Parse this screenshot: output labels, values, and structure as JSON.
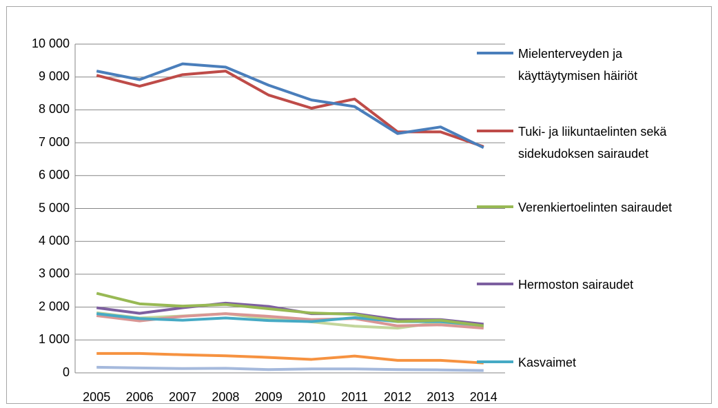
{
  "chart_data": {
    "type": "line",
    "categories": [
      "2005",
      "2006",
      "2007",
      "2008",
      "2009",
      "2010",
      "2011",
      "2012",
      "2013",
      "2014"
    ],
    "series": [
      {
        "name": "Mielenterveyden ja käyttäytymisen häiriöt",
        "color": "#4a7ebb",
        "values": [
          9180,
          8920,
          9400,
          9300,
          8750,
          8300,
          8100,
          7280,
          7480,
          6850
        ]
      },
      {
        "name": "Tuki- ja liikuntaelinten sekä sidekudoksen sairaudet",
        "color": "#be4b48",
        "values": [
          9050,
          8720,
          9070,
          9180,
          8450,
          8050,
          8330,
          7330,
          7330,
          6880
        ]
      },
      {
        "name": "Verenkiertoelinten sairaudet",
        "color": "#98b954",
        "values": [
          2420,
          2100,
          2030,
          2080,
          1950,
          1820,
          1780,
          1560,
          1600,
          1430
        ]
      },
      {
        "name": "Hermoston sairaudet",
        "color": "#7d5fa0",
        "values": [
          1980,
          1810,
          1980,
          2120,
          2020,
          1800,
          1800,
          1620,
          1620,
          1480
        ]
      },
      {
        "name": "Kasvaimet",
        "color": "#46aac5",
        "values": [
          1800,
          1650,
          1600,
          1670,
          1590,
          1560,
          1680,
          1560,
          1560,
          1440
        ]
      },
      {
        "color": "#f69240",
        "values": [
          590,
          590,
          550,
          520,
          470,
          410,
          510,
          380,
          380,
          300
        ]
      },
      {
        "color": "#a5b9dc",
        "values": [
          170,
          150,
          130,
          140,
          100,
          120,
          120,
          100,
          90,
          70
        ]
      },
      {
        "color": "#d99694",
        "values": [
          1740,
          1580,
          1720,
          1800,
          1720,
          1620,
          1650,
          1430,
          1460,
          1360
        ]
      },
      {
        "color": "#c3d69b",
        "values": [
          1830,
          1670,
          1730,
          1800,
          1650,
          1550,
          1420,
          1360,
          1540,
          1380
        ]
      }
    ],
    "ylim": [
      0,
      10000
    ],
    "yticks": [
      0,
      {
        "value": 1000,
        "label": "1 000"
      },
      {
        "value": 2000,
        "label": "2 000"
      },
      {
        "value": 3000,
        "label": "3 000"
      },
      {
        "value": 4000,
        "label": "4 000"
      },
      {
        "value": 5000,
        "label": "5 000"
      },
      {
        "value": 6000,
        "label": "6 000"
      },
      {
        "value": 7000,
        "label": "7 000"
      },
      {
        "value": 8000,
        "label": "8 000"
      },
      {
        "value": 9000,
        "label": "9 000"
      },
      {
        "value": 10000,
        "label": "10 000"
      }
    ],
    "grid": true
  }
}
